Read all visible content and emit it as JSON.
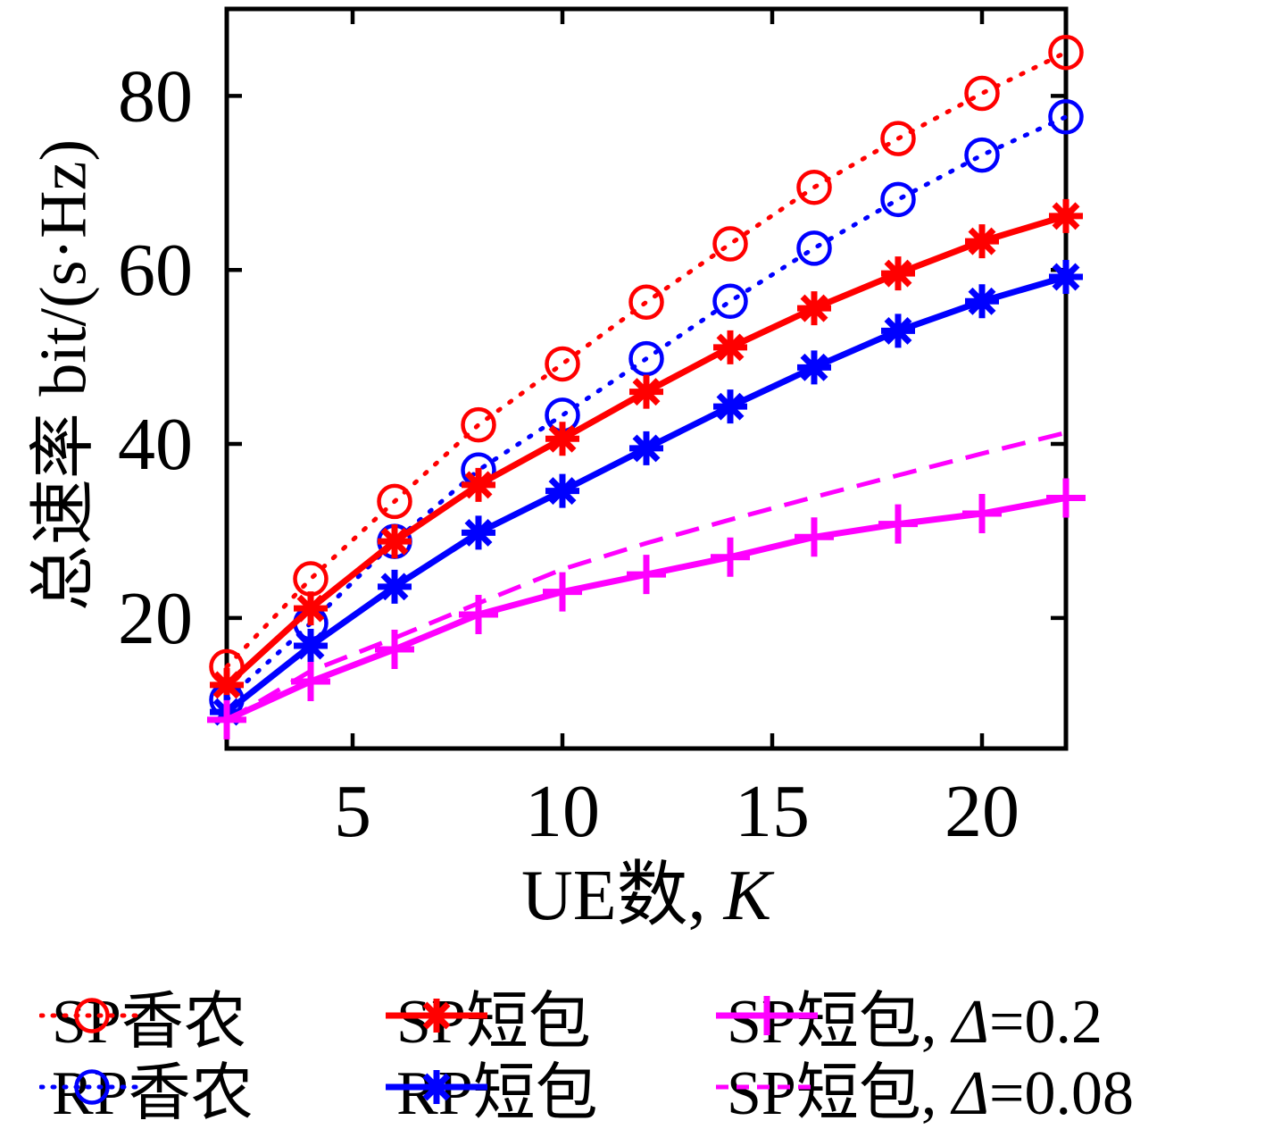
{
  "figure": {
    "x_axis": {
      "label_prefix": "UE数,",
      "label_var": "K"
    },
    "y_axis": {
      "label": "总速率 bit/(s·Hz)"
    }
  },
  "chart_data": {
    "type": "line",
    "title": "",
    "xlabel": "UE数, K",
    "ylabel": "总速率 bit/(s·Hz)",
    "xlim": [
      2,
      22
    ],
    "ylim": [
      5,
      90
    ],
    "x_ticks": [
      5,
      10,
      15,
      20
    ],
    "y_ticks": [
      20,
      40,
      60,
      80
    ],
    "grid": false,
    "legend_position": "below",
    "x": [
      2,
      4,
      6,
      8,
      10,
      12,
      14,
      16,
      18,
      20,
      22
    ],
    "series": [
      {
        "name": "SP香农",
        "color": "#ff0000",
        "line": "dotted",
        "marker": "circle",
        "values": [
          14.4,
          24.5,
          33.4,
          42.2,
          49.2,
          56.3,
          63.0,
          69.5,
          75.1,
          80.3,
          85.0
        ]
      },
      {
        "name": "RP香农",
        "color": "#0000ff",
        "line": "dotted",
        "marker": "circle",
        "values": [
          10.6,
          19.4,
          28.8,
          37.0,
          43.3,
          49.8,
          56.4,
          62.5,
          68.1,
          73.2,
          77.6
        ]
      },
      {
        "name": "SP短包",
        "color": "#ff0000",
        "line": "solid",
        "marker": "asterisk",
        "values": [
          12.3,
          21.1,
          28.8,
          35.3,
          40.6,
          46.0,
          51.1,
          55.6,
          59.6,
          63.3,
          66.2
        ]
      },
      {
        "name": "RP短包",
        "color": "#0000ff",
        "line": "solid",
        "marker": "asterisk",
        "values": [
          9.2,
          16.8,
          23.6,
          29.8,
          34.6,
          39.5,
          44.3,
          48.8,
          53.0,
          56.4,
          59.2
        ]
      },
      {
        "name": "SP短包, Δ=0.2",
        "color": "#ff00ff",
        "line": "solid",
        "marker": "plus",
        "values": [
          8.3,
          12.7,
          16.4,
          20.4,
          23.0,
          25.0,
          27.0,
          29.3,
          30.8,
          32.0,
          33.8
        ]
      },
      {
        "name": "SP短包, Δ=0.08",
        "color": "#ff00ff",
        "line": "dashed",
        "marker": "none",
        "values": [
          8.2,
          13.9,
          17.7,
          21.7,
          25.6,
          28.6,
          31.3,
          33.9,
          36.4,
          38.9,
          41.3
        ]
      }
    ],
    "axis_color": "#000000",
    "background_color": "#ffffff"
  }
}
